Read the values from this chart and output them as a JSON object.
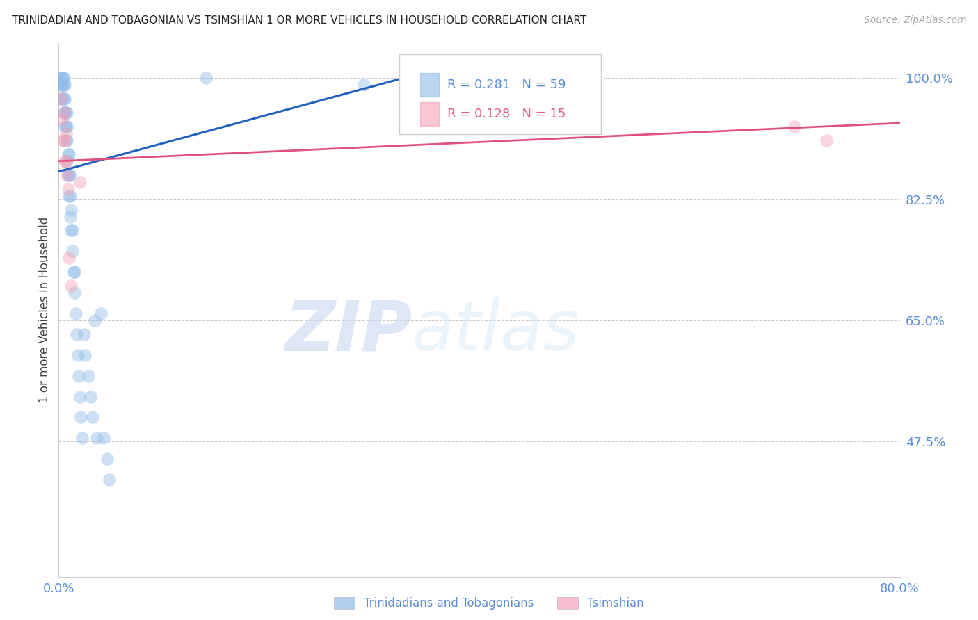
{
  "title": "TRINIDADIAN AND TOBAGONIAN VS TSIMSHIAN 1 OR MORE VEHICLES IN HOUSEHOLD CORRELATION CHART",
  "source": "Source: ZipAtlas.com",
  "ylabel": "1 or more Vehicles in Household",
  "x_min": 0.0,
  "x_max": 0.8,
  "y_min": 0.28,
  "y_max": 1.05,
  "yticks": [
    0.475,
    0.65,
    0.825,
    1.0
  ],
  "ytick_labels": [
    "47.5%",
    "65.0%",
    "82.5%",
    "100.0%"
  ],
  "xticks": [
    0.0,
    0.1,
    0.2,
    0.3,
    0.4,
    0.5,
    0.6,
    0.7,
    0.8
  ],
  "xtick_labels": [
    "0.0%",
    "",
    "",
    "",
    "",
    "",
    "",
    "",
    "80.0%"
  ],
  "blue_color": "#90bce8",
  "pink_color": "#f5a0b8",
  "blue_line_color": "#2060c0",
  "pink_line_color": "#e05080",
  "tick_color": "#5b8dd9",
  "grid_color": "#cccccc",
  "blue_scatter_x": [
    0.001,
    0.002,
    0.002,
    0.003,
    0.003,
    0.004,
    0.004,
    0.004,
    0.005,
    0.005,
    0.005,
    0.005,
    0.006,
    0.006,
    0.006,
    0.006,
    0.007,
    0.007,
    0.007,
    0.008,
    0.008,
    0.008,
    0.008,
    0.009,
    0.009,
    0.01,
    0.01,
    0.01,
    0.011,
    0.011,
    0.011,
    0.012,
    0.012,
    0.013,
    0.013,
    0.014,
    0.015,
    0.015,
    0.016,
    0.017,
    0.018,
    0.019,
    0.02,
    0.021,
    0.022,
    0.024,
    0.025,
    0.028,
    0.03,
    0.032,
    0.034,
    0.036,
    0.04,
    0.043,
    0.046,
    0.048,
    0.14,
    0.29,
    0.34
  ],
  "blue_scatter_y": [
    0.97,
    0.99,
    1.0,
    0.99,
    1.0,
    0.97,
    0.99,
    1.0,
    0.95,
    0.97,
    0.99,
    1.0,
    0.93,
    0.95,
    0.97,
    0.99,
    0.91,
    0.93,
    0.95,
    0.88,
    0.91,
    0.93,
    0.95,
    0.86,
    0.89,
    0.83,
    0.86,
    0.89,
    0.8,
    0.83,
    0.86,
    0.78,
    0.81,
    0.75,
    0.78,
    0.72,
    0.69,
    0.72,
    0.66,
    0.63,
    0.6,
    0.57,
    0.54,
    0.51,
    0.48,
    0.63,
    0.6,
    0.57,
    0.54,
    0.51,
    0.65,
    0.48,
    0.66,
    0.48,
    0.45,
    0.42,
    1.0,
    0.99,
    1.0
  ],
  "pink_scatter_x": [
    0.002,
    0.003,
    0.004,
    0.005,
    0.005,
    0.006,
    0.007,
    0.007,
    0.008,
    0.009,
    0.01,
    0.012,
    0.02,
    0.7,
    0.73
  ],
  "pink_scatter_y": [
    0.97,
    0.94,
    0.91,
    0.95,
    0.91,
    0.88,
    0.92,
    0.88,
    0.86,
    0.84,
    0.74,
    0.7,
    0.85,
    0.93,
    0.91
  ],
  "blue_trend_x0": 0.0,
  "blue_trend_y0": 0.865,
  "blue_trend_x1": 0.34,
  "blue_trend_y1": 1.005,
  "pink_trend_x0": 0.0,
  "pink_trend_y0": 0.88,
  "pink_trend_x1": 0.8,
  "pink_trend_y1": 0.935,
  "legend_blue_label_r": "R = 0.281",
  "legend_blue_label_n": "N = 59",
  "legend_pink_label_r": "R = 0.128",
  "legend_pink_label_n": "N = 15",
  "watermark_zip": "ZIP",
  "watermark_atlas": "atlas",
  "bottom_label_blue": "Trinidadians and Tobagonians",
  "bottom_label_pink": "Tsimshian"
}
